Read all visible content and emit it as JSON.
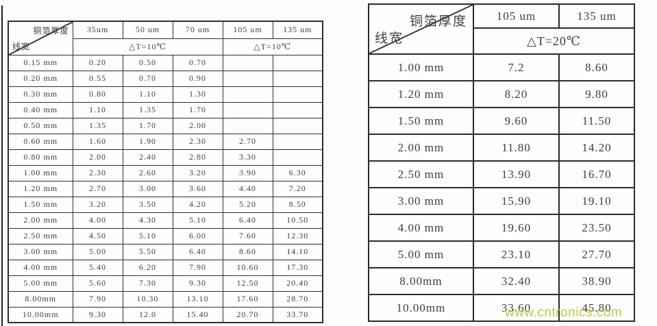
{
  "watermark": {
    "text": "www.cntronics.com",
    "color": "#b5c33c"
  },
  "left_table": {
    "corner_top_label": "铜箔厚度",
    "corner_bottom_label": "线宽",
    "columns": [
      "35um",
      "50 um",
      "70 um",
      "105 um",
      "135 um"
    ],
    "delta_groups": [
      {
        "label": "△T=10℃",
        "span": 3
      },
      {
        "label": "△T=10℃",
        "span": 2
      }
    ],
    "rows": [
      {
        "label": "0.15 mm",
        "values": [
          "0.20",
          "0.50",
          "0.70",
          "",
          ""
        ]
      },
      {
        "label": "0.20 mm",
        "values": [
          "0.55",
          "0.70",
          "0.90",
          "",
          ""
        ]
      },
      {
        "label": "0.30 mm",
        "values": [
          "0.80",
          "1.10",
          "1.30",
          "",
          ""
        ]
      },
      {
        "label": "0.40 mm",
        "values": [
          "1.10",
          "1.35",
          "1.70",
          "",
          ""
        ]
      },
      {
        "label": "0.50 mm",
        "values": [
          "1.35",
          "1.70",
          "2.00",
          "",
          ""
        ]
      },
      {
        "label": "0.60 mm",
        "values": [
          "1.60",
          "1.90",
          "2.30",
          "2.70",
          ""
        ]
      },
      {
        "label": "0.80 mm",
        "values": [
          "2.00",
          "2.40",
          "2.80",
          "3.30",
          ""
        ]
      },
      {
        "label": "1.00 mm",
        "values": [
          "2.30",
          "2.60",
          "3.20",
          "3.90",
          "6.30"
        ]
      },
      {
        "label": "1.20 mm",
        "values": [
          "2.70",
          "3.00",
          "3.60",
          "4.40",
          "7.20"
        ]
      },
      {
        "label": "1.50 mm",
        "values": [
          "3.20",
          "3.50",
          "4.20",
          "5.20",
          "8.50"
        ]
      },
      {
        "label": "2.00 mm",
        "values": [
          "4.00",
          "4.30",
          "5.10",
          "6.40",
          "10.50"
        ]
      },
      {
        "label": "2.50 mm",
        "values": [
          "4.50",
          "5.10",
          "6.00",
          "7.60",
          "12.30"
        ]
      },
      {
        "label": "3.00 mm",
        "values": [
          "5.00",
          "5.50",
          "6.40",
          "8.60",
          "14.10"
        ]
      },
      {
        "label": "4.00 mm",
        "values": [
          "5.40",
          "6.20",
          "7.90",
          "10.60",
          "17.30"
        ]
      },
      {
        "label": "5.00 mm",
        "values": [
          "5.60",
          "7.30",
          "9.30",
          "12.50",
          "20.40"
        ]
      },
      {
        "label": "8.00mm",
        "values": [
          "7.90",
          "10.30",
          "13.10",
          "17.60",
          "28.70"
        ]
      },
      {
        "label": "10.00mm",
        "values": [
          "9.30",
          "12.0",
          "15.40",
          "20.70",
          "33.70"
        ]
      }
    ]
  },
  "right_table": {
    "corner_top_label": "铜箔厚度",
    "corner_bottom_label": "线宽",
    "columns": [
      "105 um",
      "135 um"
    ],
    "delta_groups": [
      {
        "label": "△T=20℃",
        "span": 2
      }
    ],
    "rows": [
      {
        "label": "1.00 mm",
        "values": [
          "7.2",
          "8.60"
        ]
      },
      {
        "label": "1.20 mm",
        "values": [
          "8.20",
          "9.80"
        ]
      },
      {
        "label": "1.50 mm",
        "values": [
          "9.60",
          "11.50"
        ]
      },
      {
        "label": "2.00 mm",
        "values": [
          "11.80",
          "14.20"
        ]
      },
      {
        "label": "2.50 mm",
        "values": [
          "13.90",
          "16.70"
        ]
      },
      {
        "label": "3.00 mm",
        "values": [
          "15.90",
          "19.10"
        ]
      },
      {
        "label": "4.00 mm",
        "values": [
          "19.60",
          "23.50"
        ]
      },
      {
        "label": "5.00 mm",
        "values": [
          "23.10",
          "27.70"
        ]
      },
      {
        "label": "8.00mm",
        "values": [
          "32.40",
          "38.90"
        ]
      },
      {
        "label": "10.00mm",
        "values": [
          "33.60",
          "45.80"
        ]
      }
    ]
  }
}
